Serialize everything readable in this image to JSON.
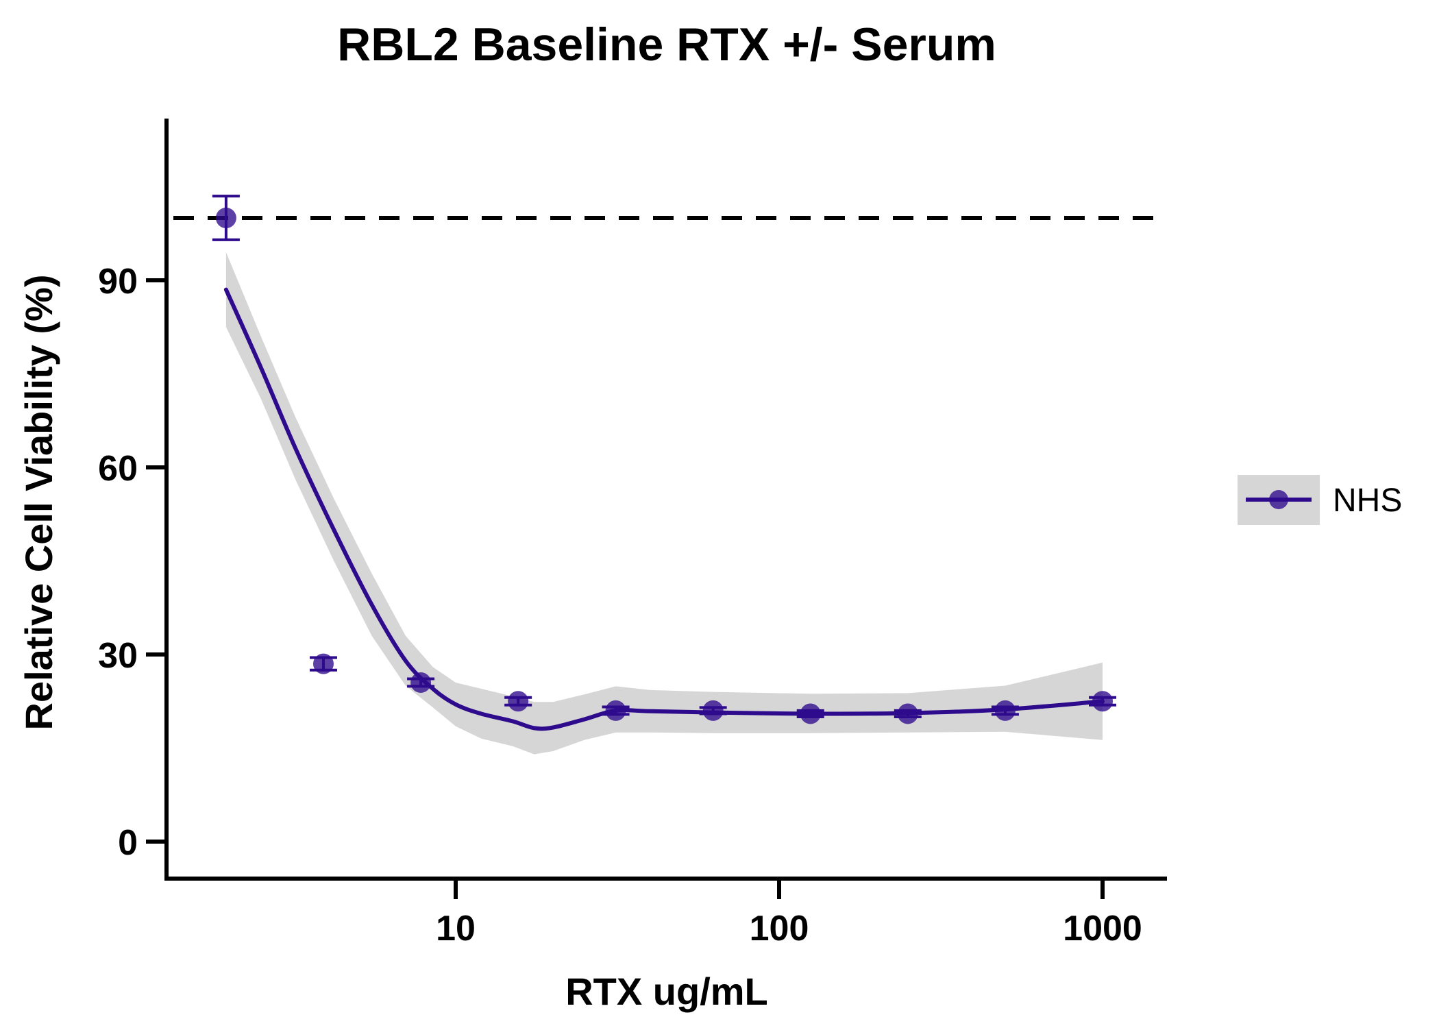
{
  "chart_data": {
    "type": "scatter",
    "title": "RBL2 Baseline RTX +/- Serum",
    "xlabel": "RTX ug/mL",
    "ylabel": "Relative Cell Viability (%)",
    "x_scale": "log",
    "xlim": [
      1.2,
      1500
    ],
    "ylim": [
      -5,
      115
    ],
    "x_ticks": [
      10,
      100,
      1000
    ],
    "x_tick_labels": [
      "10",
      "100",
      "1000"
    ],
    "y_ticks": [
      0,
      30,
      60,
      90
    ],
    "y_tick_labels": [
      "0",
      "30",
      "60",
      "90"
    ],
    "reference_line": {
      "y": 100,
      "style": "dashed",
      "color": "#000000"
    },
    "grid": false,
    "legend": {
      "position": "right",
      "entries": [
        "NHS"
      ]
    },
    "colors": {
      "series": "#2E0A8C",
      "ribbon": "#D6D6D6"
    },
    "series": [
      {
        "name": "NHS",
        "x": [
          1.95,
          3.9,
          7.8,
          15.6,
          31.25,
          62.5,
          125,
          250,
          500,
          1000
        ],
        "y": [
          100.0,
          28.5,
          25.5,
          22.5,
          21.0,
          21.0,
          20.5,
          20.5,
          21.0,
          22.5
        ],
        "error": [
          3.5,
          1.0,
          0.6,
          0.6,
          0.6,
          0.5,
          0.5,
          0.5,
          0.6,
          0.6
        ],
        "fit": {
          "x": [
            1.95,
            2.5,
            3.2,
            4.2,
            5.5,
            7.0,
            8.5,
            10,
            12,
            15,
            17.5,
            20,
            25,
            31.25,
            40,
            62.5,
            125,
            250,
            500,
            1000
          ],
          "y": [
            88.5,
            76,
            63,
            50,
            38,
            29,
            24.5,
            22,
            20.5,
            19.3,
            18.2,
            18.3,
            19.6,
            21.0,
            20.9,
            20.7,
            20.5,
            20.6,
            21.2,
            22.5
          ],
          "lower": [
            82.5,
            71,
            58,
            45,
            33,
            25,
            21.5,
            18.5,
            16.5,
            15.3,
            14.0,
            14.5,
            16.3,
            17.5,
            17.5,
            17.4,
            17.4,
            17.5,
            17.6,
            16.3
          ],
          "upper": [
            94.5,
            81,
            68,
            55,
            43,
            33,
            28,
            25.5,
            24.5,
            23.3,
            22.4,
            22.4,
            23.6,
            24.9,
            24.3,
            24.0,
            23.7,
            23.8,
            25.0,
            28.7
          ]
        }
      }
    ]
  }
}
